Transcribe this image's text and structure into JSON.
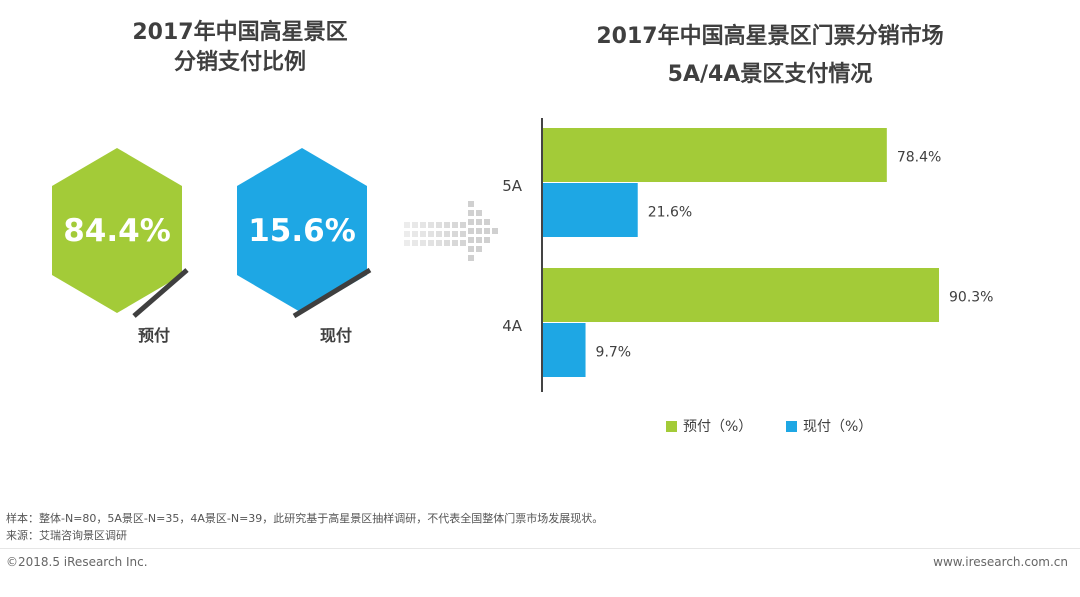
{
  "colors": {
    "prepay": "#a3cb38",
    "payonsite": "#1ea7e4",
    "text": "#404040"
  },
  "left": {
    "title_line1": "2017年中国高星景区",
    "title_line2": "分销支付比例",
    "prepay_value": "84.4%",
    "prepay_label": "预付",
    "onsite_value": "15.6%",
    "onsite_label": "现付"
  },
  "right": {
    "title_line1": "2017年中国高星景区门票分销市场",
    "title_line2": "5A/4A景区支付情况"
  },
  "chart_data": {
    "type": "bar",
    "orientation": "horizontal",
    "title": "2017年中国高星景区门票分销市场 5A/4A景区支付情况",
    "categories": [
      "5A",
      "4A"
    ],
    "series": [
      {
        "name": "预付（%）",
        "values": [
          78.4,
          90.3
        ],
        "color": "#a3cb38"
      },
      {
        "name": "现付（%）",
        "values": [
          21.6,
          9.7
        ],
        "color": "#1ea7e4"
      }
    ],
    "xlim": [
      0,
      100
    ],
    "value_suffix": "%",
    "legend_position": "bottom"
  },
  "notes": {
    "sample": "样本：整体-N=80，5A景区-N=35，4A景区-N=39，此研究基于高星景区抽样调研，不代表全国整体门票市场发展现状。",
    "source": "来源：艾瑞咨询景区调研"
  },
  "footer": {
    "copyright": "©2018.5 iResearch Inc.",
    "website": "www.iresearch.com.cn"
  }
}
